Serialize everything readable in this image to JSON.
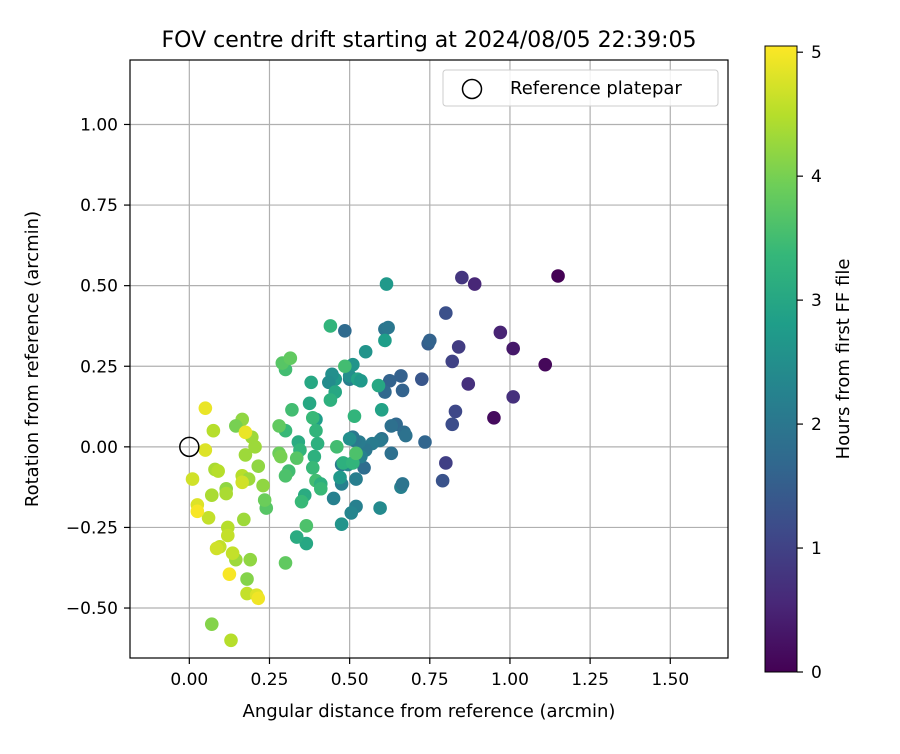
{
  "chart_data": {
    "type": "scatter",
    "title": "FOV centre drift starting at 2024/08/05 22:39:05",
    "xlabel": "Angular distance from reference (arcmin)",
    "ylabel": "Rotation from reference (arcmin)",
    "xlim": [
      -0.185,
      1.68
    ],
    "ylim": [
      -0.655,
      1.2
    ],
    "xticks": [
      0.0,
      0.25,
      0.5,
      0.75,
      1.0,
      1.25,
      1.5
    ],
    "xtick_labels": [
      "0.00",
      "0.25",
      "0.50",
      "0.75",
      "1.00",
      "1.25",
      "1.50"
    ],
    "yticks": [
      -0.5,
      -0.25,
      0.0,
      0.25,
      0.5,
      0.75,
      1.0
    ],
    "ytick_labels": [
      "−0.50",
      "−0.25",
      "0.00",
      "0.25",
      "0.50",
      "0.75",
      "1.00"
    ],
    "grid": true,
    "legend": {
      "placement": "upper right",
      "entries": [
        {
          "label": "Reference platepar",
          "marker": "open-circle"
        }
      ]
    },
    "reference_point": {
      "x": 0.0,
      "y": 0.0
    },
    "colorbar": {
      "label": "Hours from first FF file",
      "range": [
        0,
        5.05
      ],
      "ticks": [
        0,
        1,
        2,
        3,
        4,
        5
      ],
      "tick_labels": [
        "0",
        "1",
        "2",
        "3",
        "4",
        "5"
      ],
      "colormap": "viridis"
    },
    "points": [
      {
        "x": 1.15,
        "y": 0.53,
        "c": 0.0
      },
      {
        "x": 1.11,
        "y": 0.255,
        "c": 0.1
      },
      {
        "x": 0.95,
        "y": 0.09,
        "c": 0.15
      },
      {
        "x": 1.01,
        "y": 0.305,
        "c": 0.35
      },
      {
        "x": 0.97,
        "y": 0.355,
        "c": 0.5
      },
      {
        "x": 0.89,
        "y": 0.505,
        "c": 0.55
      },
      {
        "x": 1.01,
        "y": 0.155,
        "c": 0.7
      },
      {
        "x": 0.85,
        "y": 0.525,
        "c": 0.8
      },
      {
        "x": 0.87,
        "y": 0.195,
        "c": 0.7
      },
      {
        "x": 0.84,
        "y": 0.31,
        "c": 0.9
      },
      {
        "x": 0.82,
        "y": 0.265,
        "c": 1.0
      },
      {
        "x": 0.8,
        "y": -0.05,
        "c": 0.95
      },
      {
        "x": 0.83,
        "y": 0.11,
        "c": 1.1
      },
      {
        "x": 0.82,
        "y": 0.07,
        "c": 1.2
      },
      {
        "x": 0.8,
        "y": 0.415,
        "c": 1.25
      },
      {
        "x": 0.79,
        "y": -0.105,
        "c": 1.3
      },
      {
        "x": 0.725,
        "y": 0.21,
        "c": 1.35
      },
      {
        "x": 0.745,
        "y": 0.32,
        "c": 1.5
      },
      {
        "x": 0.75,
        "y": 0.33,
        "c": 1.6
      },
      {
        "x": 0.735,
        "y": 0.015,
        "c": 1.65
      },
      {
        "x": 0.665,
        "y": 0.175,
        "c": 1.6
      },
      {
        "x": 0.66,
        "y": 0.22,
        "c": 1.55
      },
      {
        "x": 0.625,
        "y": 0.205,
        "c": 1.6
      },
      {
        "x": 0.61,
        "y": 0.17,
        "c": 1.7
      },
      {
        "x": 0.645,
        "y": 0.07,
        "c": 1.7
      },
      {
        "x": 0.67,
        "y": 0.045,
        "c": 1.8
      },
      {
        "x": 0.675,
        "y": 0.035,
        "c": 1.9
      },
      {
        "x": 0.63,
        "y": 0.065,
        "c": 1.85
      },
      {
        "x": 0.63,
        "y": -0.02,
        "c": 1.85
      },
      {
        "x": 0.66,
        "y": -0.125,
        "c": 2.2
      },
      {
        "x": 0.665,
        "y": -0.115,
        "c": 1.95
      },
      {
        "x": 0.61,
        "y": 0.365,
        "c": 1.95
      },
      {
        "x": 0.62,
        "y": 0.37,
        "c": 2.0
      },
      {
        "x": 0.485,
        "y": 0.36,
        "c": 1.75
      },
      {
        "x": 0.6,
        "y": 0.025,
        "c": 1.9
      },
      {
        "x": 0.595,
        "y": 0.02,
        "c": 2.05
      },
      {
        "x": 0.57,
        "y": 0.01,
        "c": 2.1
      },
      {
        "x": 0.55,
        "y": -0.01,
        "c": 2.0
      },
      {
        "x": 0.545,
        "y": -0.065,
        "c": 1.8
      },
      {
        "x": 0.535,
        "y": -0.03,
        "c": 2.2
      },
      {
        "x": 0.52,
        "y": -0.1,
        "c": 2.15
      },
      {
        "x": 0.52,
        "y": -0.185,
        "c": 2.2
      },
      {
        "x": 0.505,
        "y": -0.205,
        "c": 2.3
      },
      {
        "x": 0.595,
        "y": -0.19,
        "c": 2.4
      },
      {
        "x": 0.53,
        "y": 0.015,
        "c": 2.1
      },
      {
        "x": 0.515,
        "y": 0.02,
        "c": 2.05
      },
      {
        "x": 0.51,
        "y": 0.03,
        "c": 2.0
      },
      {
        "x": 0.5,
        "y": 0.025,
        "c": 2.5
      },
      {
        "x": 0.495,
        "y": -0.055,
        "c": 2.4
      },
      {
        "x": 0.475,
        "y": -0.055,
        "c": 2.1
      },
      {
        "x": 0.475,
        "y": -0.115,
        "c": 2.2
      },
      {
        "x": 0.45,
        "y": -0.16,
        "c": 2.2
      },
      {
        "x": 0.475,
        "y": -0.24,
        "c": 2.6
      },
      {
        "x": 0.47,
        "y": -0.095,
        "c": 2.7
      },
      {
        "x": 0.5,
        "y": 0.21,
        "c": 2.15
      },
      {
        "x": 0.5,
        "y": 0.22,
        "c": 2.5
      },
      {
        "x": 0.51,
        "y": 0.255,
        "c": 2.6
      },
      {
        "x": 0.525,
        "y": 0.21,
        "c": 2.9
      },
      {
        "x": 0.535,
        "y": 0.205,
        "c": 2.7
      },
      {
        "x": 0.55,
        "y": 0.295,
        "c": 2.6
      },
      {
        "x": 0.59,
        "y": 0.19,
        "c": 3.0
      },
      {
        "x": 0.6,
        "y": 0.115,
        "c": 2.9
      },
      {
        "x": 0.61,
        "y": 0.33,
        "c": 2.8
      },
      {
        "x": 0.615,
        "y": 0.505,
        "c": 2.7
      },
      {
        "x": 0.455,
        "y": 0.21,
        "c": 2.7
      },
      {
        "x": 0.445,
        "y": 0.225,
        "c": 2.5
      },
      {
        "x": 0.435,
        "y": 0.2,
        "c": 2.45
      },
      {
        "x": 0.455,
        "y": 0.17,
        "c": 3.0
      },
      {
        "x": 0.44,
        "y": 0.145,
        "c": 3.2
      },
      {
        "x": 0.44,
        "y": 0.375,
        "c": 3.3
      },
      {
        "x": 0.485,
        "y": 0.25,
        "c": 3.5
      },
      {
        "x": 0.515,
        "y": 0.095,
        "c": 3.3
      },
      {
        "x": 0.48,
        "y": -0.05,
        "c": 3.2
      },
      {
        "x": 0.46,
        "y": 0.0,
        "c": 3.5
      },
      {
        "x": 0.51,
        "y": -0.05,
        "c": 3.3
      },
      {
        "x": 0.52,
        "y": -0.02,
        "c": 3.6
      },
      {
        "x": 0.395,
        "y": 0.085,
        "c": 2.8
      },
      {
        "x": 0.395,
        "y": 0.05,
        "c": 3.3
      },
      {
        "x": 0.385,
        "y": 0.09,
        "c": 3.4
      },
      {
        "x": 0.375,
        "y": 0.135,
        "c": 3.0
      },
      {
        "x": 0.38,
        "y": 0.2,
        "c": 3.0
      },
      {
        "x": 0.4,
        "y": 0.01,
        "c": 3.2
      },
      {
        "x": 0.39,
        "y": -0.03,
        "c": 3.2
      },
      {
        "x": 0.385,
        "y": -0.065,
        "c": 3.4
      },
      {
        "x": 0.395,
        "y": -0.105,
        "c": 3.5
      },
      {
        "x": 0.41,
        "y": -0.115,
        "c": 3.2
      },
      {
        "x": 0.41,
        "y": -0.13,
        "c": 3.4
      },
      {
        "x": 0.34,
        "y": 0.015,
        "c": 3.1
      },
      {
        "x": 0.345,
        "y": -0.01,
        "c": 3.3
      },
      {
        "x": 0.36,
        "y": -0.15,
        "c": 3.1
      },
      {
        "x": 0.35,
        "y": -0.17,
        "c": 3.4
      },
      {
        "x": 0.365,
        "y": -0.3,
        "c": 3.0
      },
      {
        "x": 0.365,
        "y": -0.245,
        "c": 3.6
      },
      {
        "x": 0.335,
        "y": -0.28,
        "c": 3.1
      },
      {
        "x": 0.32,
        "y": 0.115,
        "c": 3.5
      },
      {
        "x": 0.335,
        "y": -0.035,
        "c": 3.7
      },
      {
        "x": 0.31,
        "y": -0.075,
        "c": 3.5
      },
      {
        "x": 0.3,
        "y": -0.09,
        "c": 3.6
      },
      {
        "x": 0.3,
        "y": 0.24,
        "c": 3.5
      },
      {
        "x": 0.3,
        "y": 0.05,
        "c": 3.4
      },
      {
        "x": 0.29,
        "y": 0.26,
        "c": 3.7
      },
      {
        "x": 0.315,
        "y": 0.275,
        "c": 3.8
      },
      {
        "x": 0.28,
        "y": 0.065,
        "c": 3.8
      },
      {
        "x": 0.28,
        "y": -0.02,
        "c": 3.9
      },
      {
        "x": 0.285,
        "y": -0.03,
        "c": 4.0
      },
      {
        "x": 0.3,
        "y": -0.36,
        "c": 3.8
      },
      {
        "x": 0.24,
        "y": -0.19,
        "c": 3.7
      },
      {
        "x": 0.235,
        "y": -0.165,
        "c": 3.9
      },
      {
        "x": 0.23,
        "y": -0.12,
        "c": 4.2
      },
      {
        "x": 0.215,
        "y": -0.06,
        "c": 4.2
      },
      {
        "x": 0.205,
        "y": 0.0,
        "c": 4.3
      },
      {
        "x": 0.195,
        "y": 0.03,
        "c": 4.3
      },
      {
        "x": 0.165,
        "y": 0.085,
        "c": 4.2
      },
      {
        "x": 0.145,
        "y": 0.065,
        "c": 4.0
      },
      {
        "x": 0.175,
        "y": -0.025,
        "c": 4.3
      },
      {
        "x": 0.175,
        "y": 0.045,
        "c": 4.9
      },
      {
        "x": 0.165,
        "y": -0.09,
        "c": 4.5
      },
      {
        "x": 0.185,
        "y": -0.1,
        "c": 4.3
      },
      {
        "x": 0.165,
        "y": -0.11,
        "c": 4.7
      },
      {
        "x": 0.17,
        "y": -0.225,
        "c": 4.3
      },
      {
        "x": 0.19,
        "y": -0.35,
        "c": 4.2
      },
      {
        "x": 0.145,
        "y": -0.35,
        "c": 4.3
      },
      {
        "x": 0.135,
        "y": -0.33,
        "c": 4.6
      },
      {
        "x": 0.18,
        "y": -0.41,
        "c": 4.1
      },
      {
        "x": 0.18,
        "y": -0.455,
        "c": 4.6
      },
      {
        "x": 0.21,
        "y": -0.46,
        "c": 4.8
      },
      {
        "x": 0.215,
        "y": -0.47,
        "c": 4.95
      },
      {
        "x": 0.125,
        "y": -0.395,
        "c": 5.0
      },
      {
        "x": 0.07,
        "y": -0.55,
        "c": 4.1
      },
      {
        "x": 0.13,
        "y": -0.6,
        "c": 4.5
      },
      {
        "x": 0.115,
        "y": -0.13,
        "c": 4.2
      },
      {
        "x": 0.115,
        "y": -0.145,
        "c": 4.4
      },
      {
        "x": 0.07,
        "y": -0.15,
        "c": 4.4
      },
      {
        "x": 0.06,
        "y": -0.22,
        "c": 4.6
      },
      {
        "x": 0.12,
        "y": -0.25,
        "c": 4.5
      },
      {
        "x": 0.12,
        "y": -0.275,
        "c": 4.6
      },
      {
        "x": 0.095,
        "y": -0.31,
        "c": 4.6
      },
      {
        "x": 0.085,
        "y": -0.315,
        "c": 4.7
      },
      {
        "x": 0.08,
        "y": -0.07,
        "c": 4.4
      },
      {
        "x": 0.09,
        "y": -0.075,
        "c": 4.5
      },
      {
        "x": 0.075,
        "y": 0.05,
        "c": 4.5
      },
      {
        "x": 0.05,
        "y": -0.01,
        "c": 4.8
      },
      {
        "x": 0.05,
        "y": 0.12,
        "c": 4.9
      },
      {
        "x": 0.01,
        "y": -0.1,
        "c": 4.7
      },
      {
        "x": 0.025,
        "y": -0.18,
        "c": 4.8
      },
      {
        "x": 0.025,
        "y": -0.2,
        "c": 5.0
      }
    ]
  }
}
